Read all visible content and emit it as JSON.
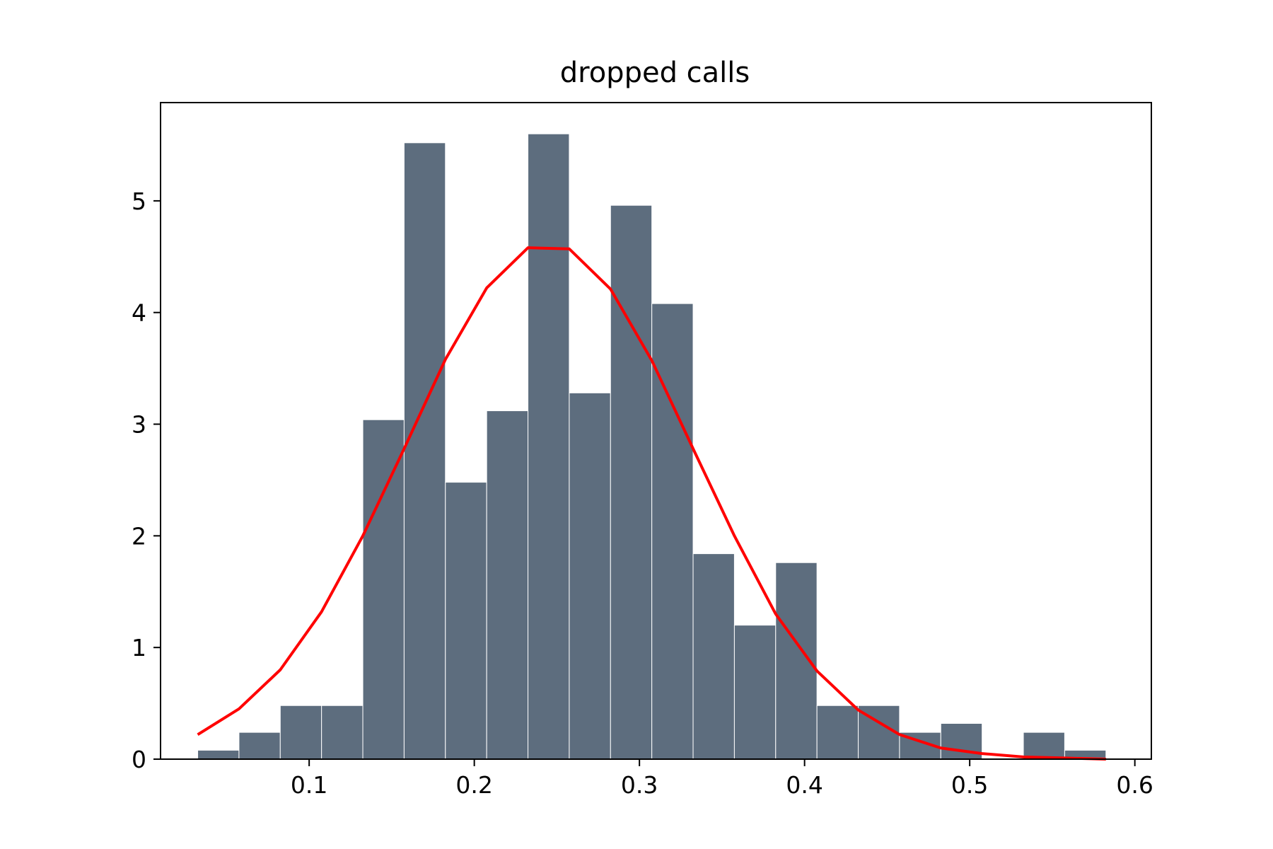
{
  "chart_data": {
    "type": "bar",
    "title": "dropped calls",
    "xlabel": "",
    "ylabel": "",
    "xlim": [
      0.01,
      0.61
    ],
    "ylim": [
      0,
      5.88
    ],
    "grid": false,
    "x_ticks": [
      {
        "value": 0.1,
        "label": "0.1"
      },
      {
        "value": 0.2,
        "label": "0.2"
      },
      {
        "value": 0.3,
        "label": "0.3"
      },
      {
        "value": 0.4,
        "label": "0.4"
      },
      {
        "value": 0.5,
        "label": "0.5"
      },
      {
        "value": 0.6,
        "label": "0.6"
      }
    ],
    "y_ticks": [
      {
        "value": 0,
        "label": "0"
      },
      {
        "value": 1,
        "label": "1"
      },
      {
        "value": 2,
        "label": "2"
      },
      {
        "value": 3,
        "label": "3"
      },
      {
        "value": 4,
        "label": "4"
      },
      {
        "value": 5,
        "label": "5"
      }
    ],
    "histogram": {
      "color": "#5d6d7e",
      "edge_color": "#ffffff",
      "bin_edges": [
        0.0325,
        0.0575,
        0.0825,
        0.1075,
        0.1325,
        0.1575,
        0.1825,
        0.2075,
        0.2325,
        0.2575,
        0.2825,
        0.3075,
        0.3325,
        0.3575,
        0.3825,
        0.4075,
        0.4325,
        0.4575,
        0.4825,
        0.5075,
        0.5325,
        0.5575,
        0.5825
      ],
      "heights": [
        0.08,
        0.24,
        0.48,
        0.48,
        3.04,
        5.52,
        2.48,
        3.12,
        5.6,
        3.28,
        4.96,
        4.08,
        1.84,
        1.2,
        1.76,
        0.48,
        0.48,
        0.24,
        0.32,
        0,
        0.24,
        0.08
      ]
    },
    "density_curve": {
      "color": "#ff0000",
      "x": [
        0.0325,
        0.0575,
        0.0825,
        0.1075,
        0.1325,
        0.1575,
        0.1825,
        0.2075,
        0.2325,
        0.2575,
        0.2825,
        0.3075,
        0.3325,
        0.3575,
        0.3825,
        0.4075,
        0.4325,
        0.4575,
        0.4825,
        0.5075,
        0.5325,
        0.5575,
        0.5825
      ],
      "y": [
        0.22,
        0.45,
        0.8,
        1.32,
        2.0,
        2.78,
        3.58,
        4.22,
        4.58,
        4.57,
        4.21,
        3.57,
        2.78,
        2.0,
        1.3,
        0.79,
        0.44,
        0.22,
        0.1,
        0.05,
        0.02,
        0.01,
        0.0
      ]
    }
  }
}
